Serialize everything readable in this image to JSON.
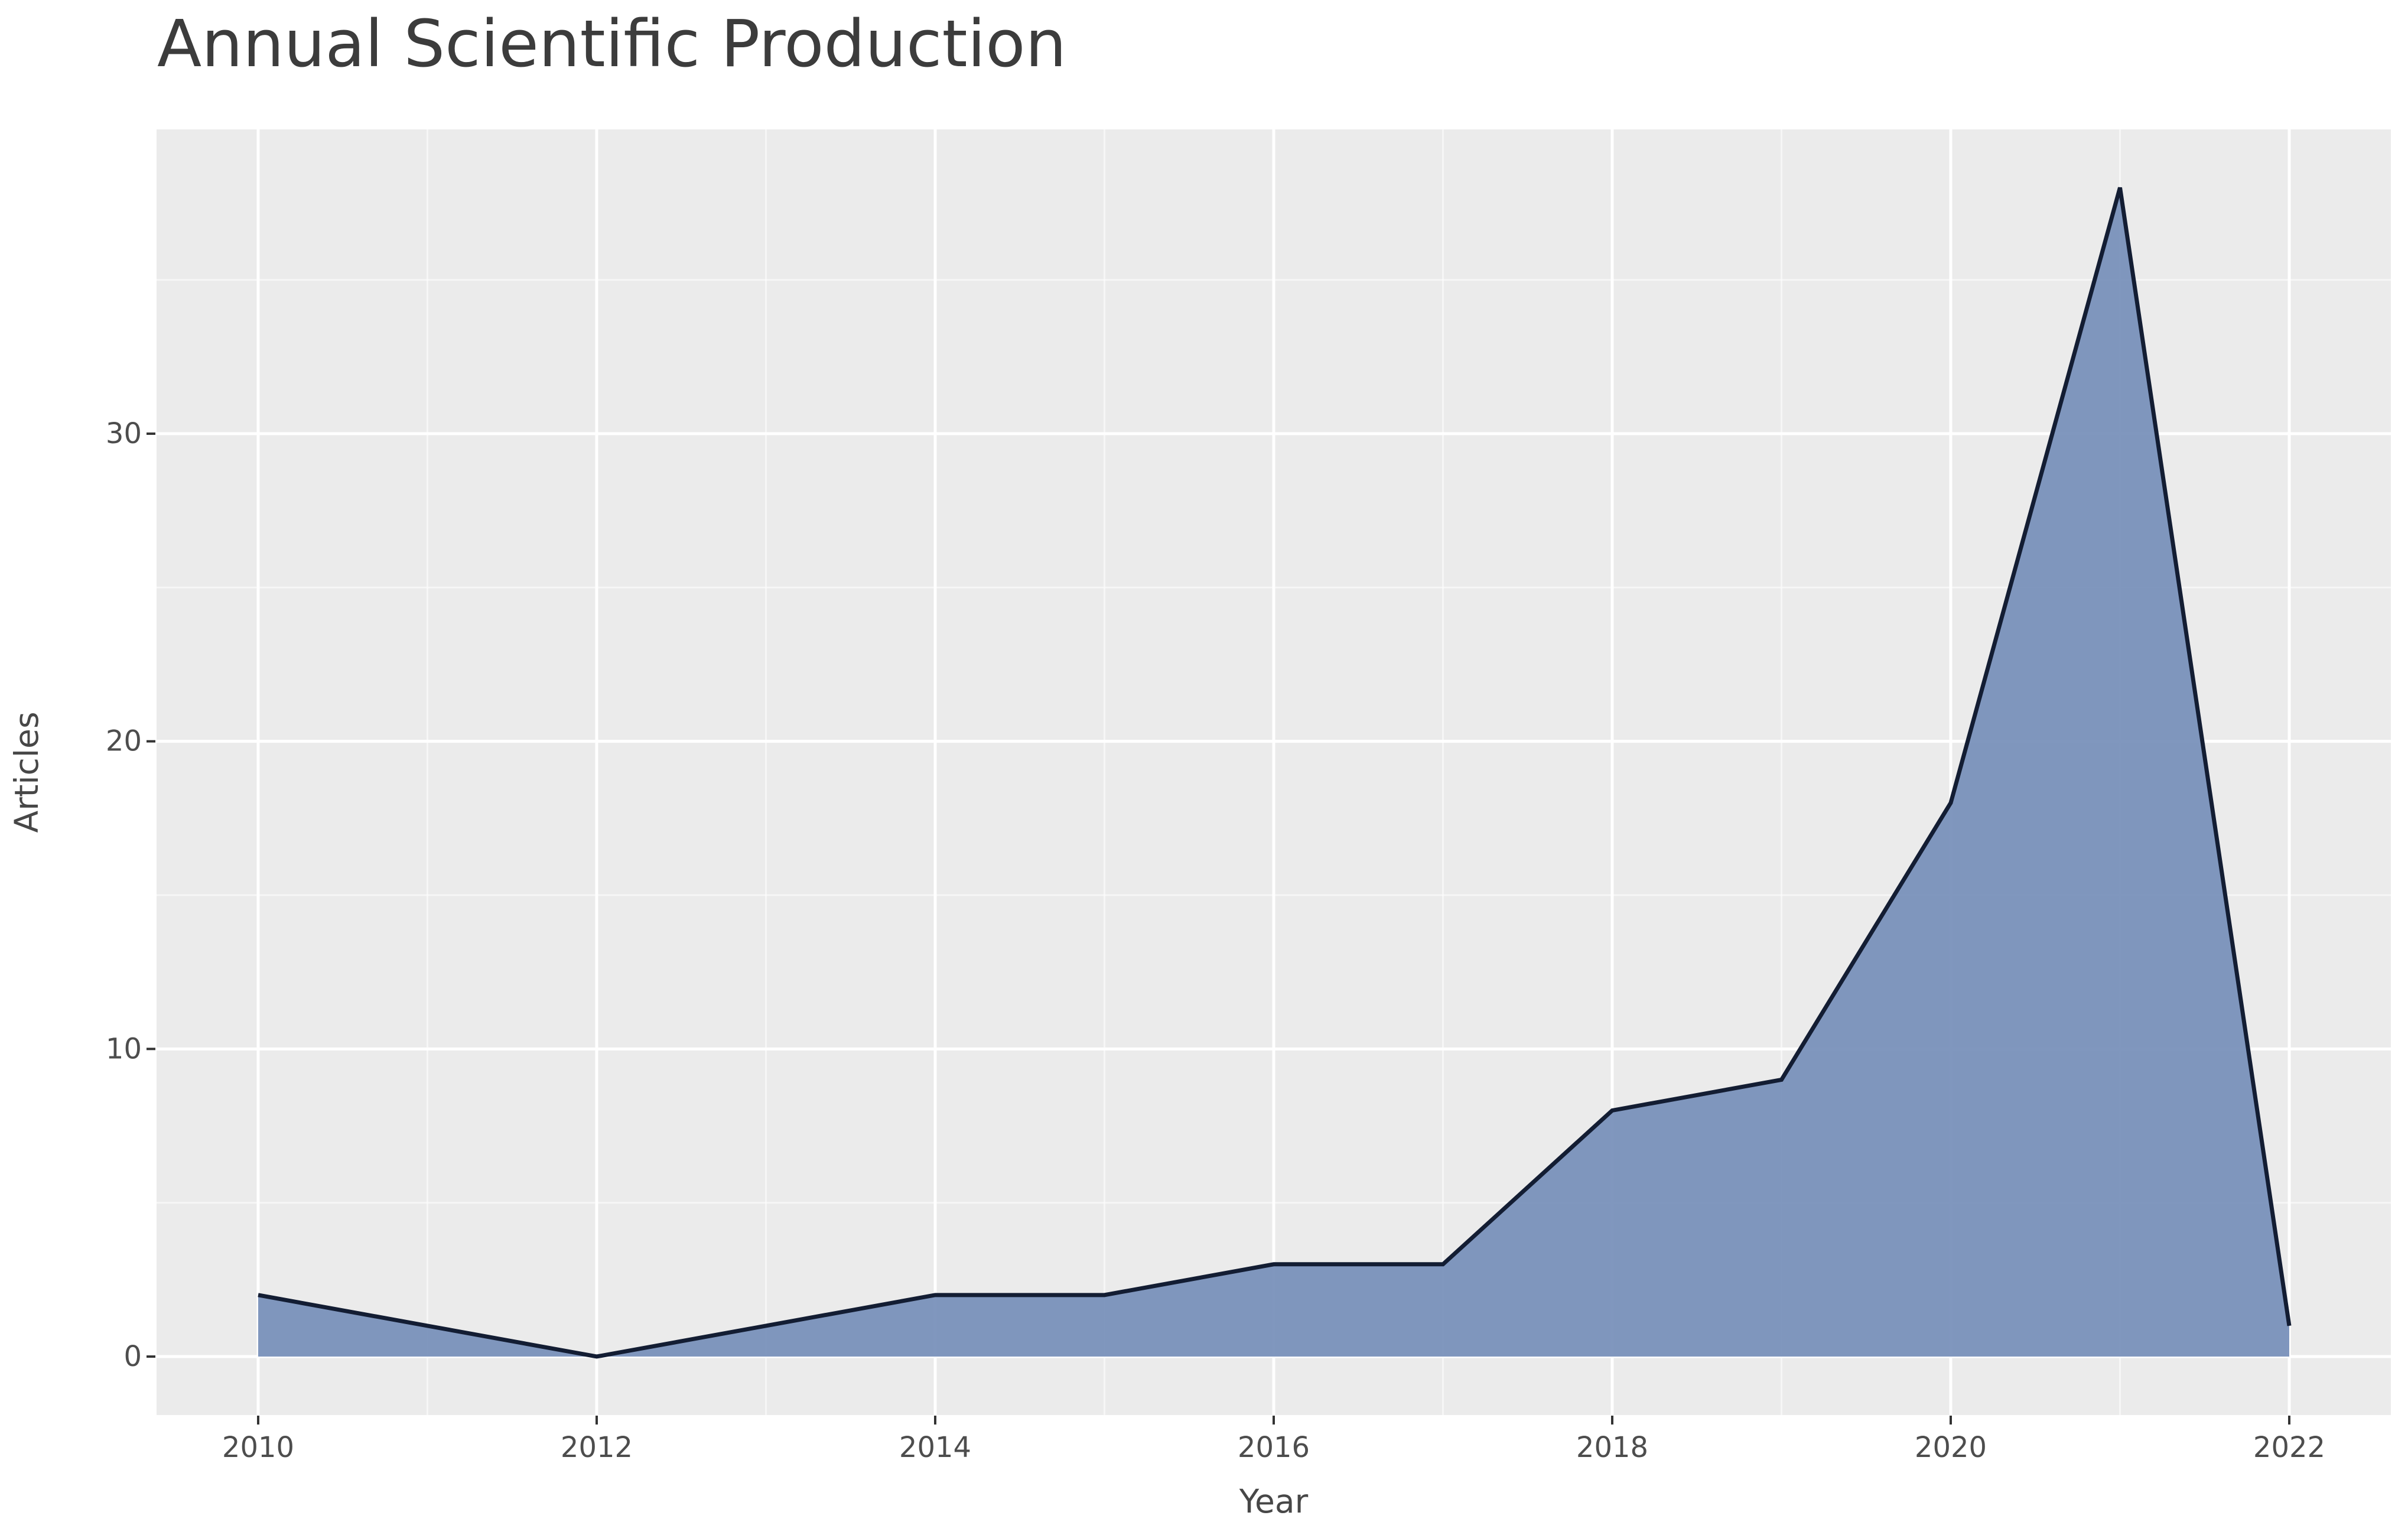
{
  "title": "Annual Scientific Production",
  "chart_data": {
    "type": "area",
    "title": "Annual Scientific Production",
    "xlabel": "Year",
    "ylabel": "Articles",
    "x": [
      2010,
      2011,
      2012,
      2013,
      2014,
      2015,
      2016,
      2017,
      2018,
      2019,
      2020,
      2021,
      2022
    ],
    "values": [
      2,
      1,
      0,
      1,
      2,
      2,
      3,
      3,
      8,
      9,
      18,
      38,
      1
    ],
    "x_ticks": [
      2010,
      2012,
      2014,
      2016,
      2018,
      2020,
      2022
    ],
    "x_tick_labels": [
      "2010",
      "2012",
      "2014",
      "2016",
      "2018",
      "2020",
      "2022"
    ],
    "y_ticks": [
      0,
      10,
      20,
      30
    ],
    "y_tick_labels": [
      "0",
      "10",
      "20",
      "30"
    ],
    "x_minor_ticks": [
      2011,
      2013,
      2015,
      2017,
      2019,
      2021
    ],
    "y_minor_ticks": [
      5,
      15,
      25,
      35
    ],
    "xlim": [
      2010,
      2022
    ],
    "ylim": [
      0,
      38
    ],
    "grid": true,
    "legend_position": "none",
    "colors": {
      "area_fill": "#7890ba",
      "line": "#131d33",
      "panel_bg": "#ebebeb",
      "grid_major": "#ffffff",
      "grid_minor": "#ffffff",
      "tick_mark": "#333333",
      "tick_label": "#4d4d4d",
      "axis_title": "#474747",
      "title": "#3c3c3c",
      "page_bg": "#ffffff"
    }
  }
}
